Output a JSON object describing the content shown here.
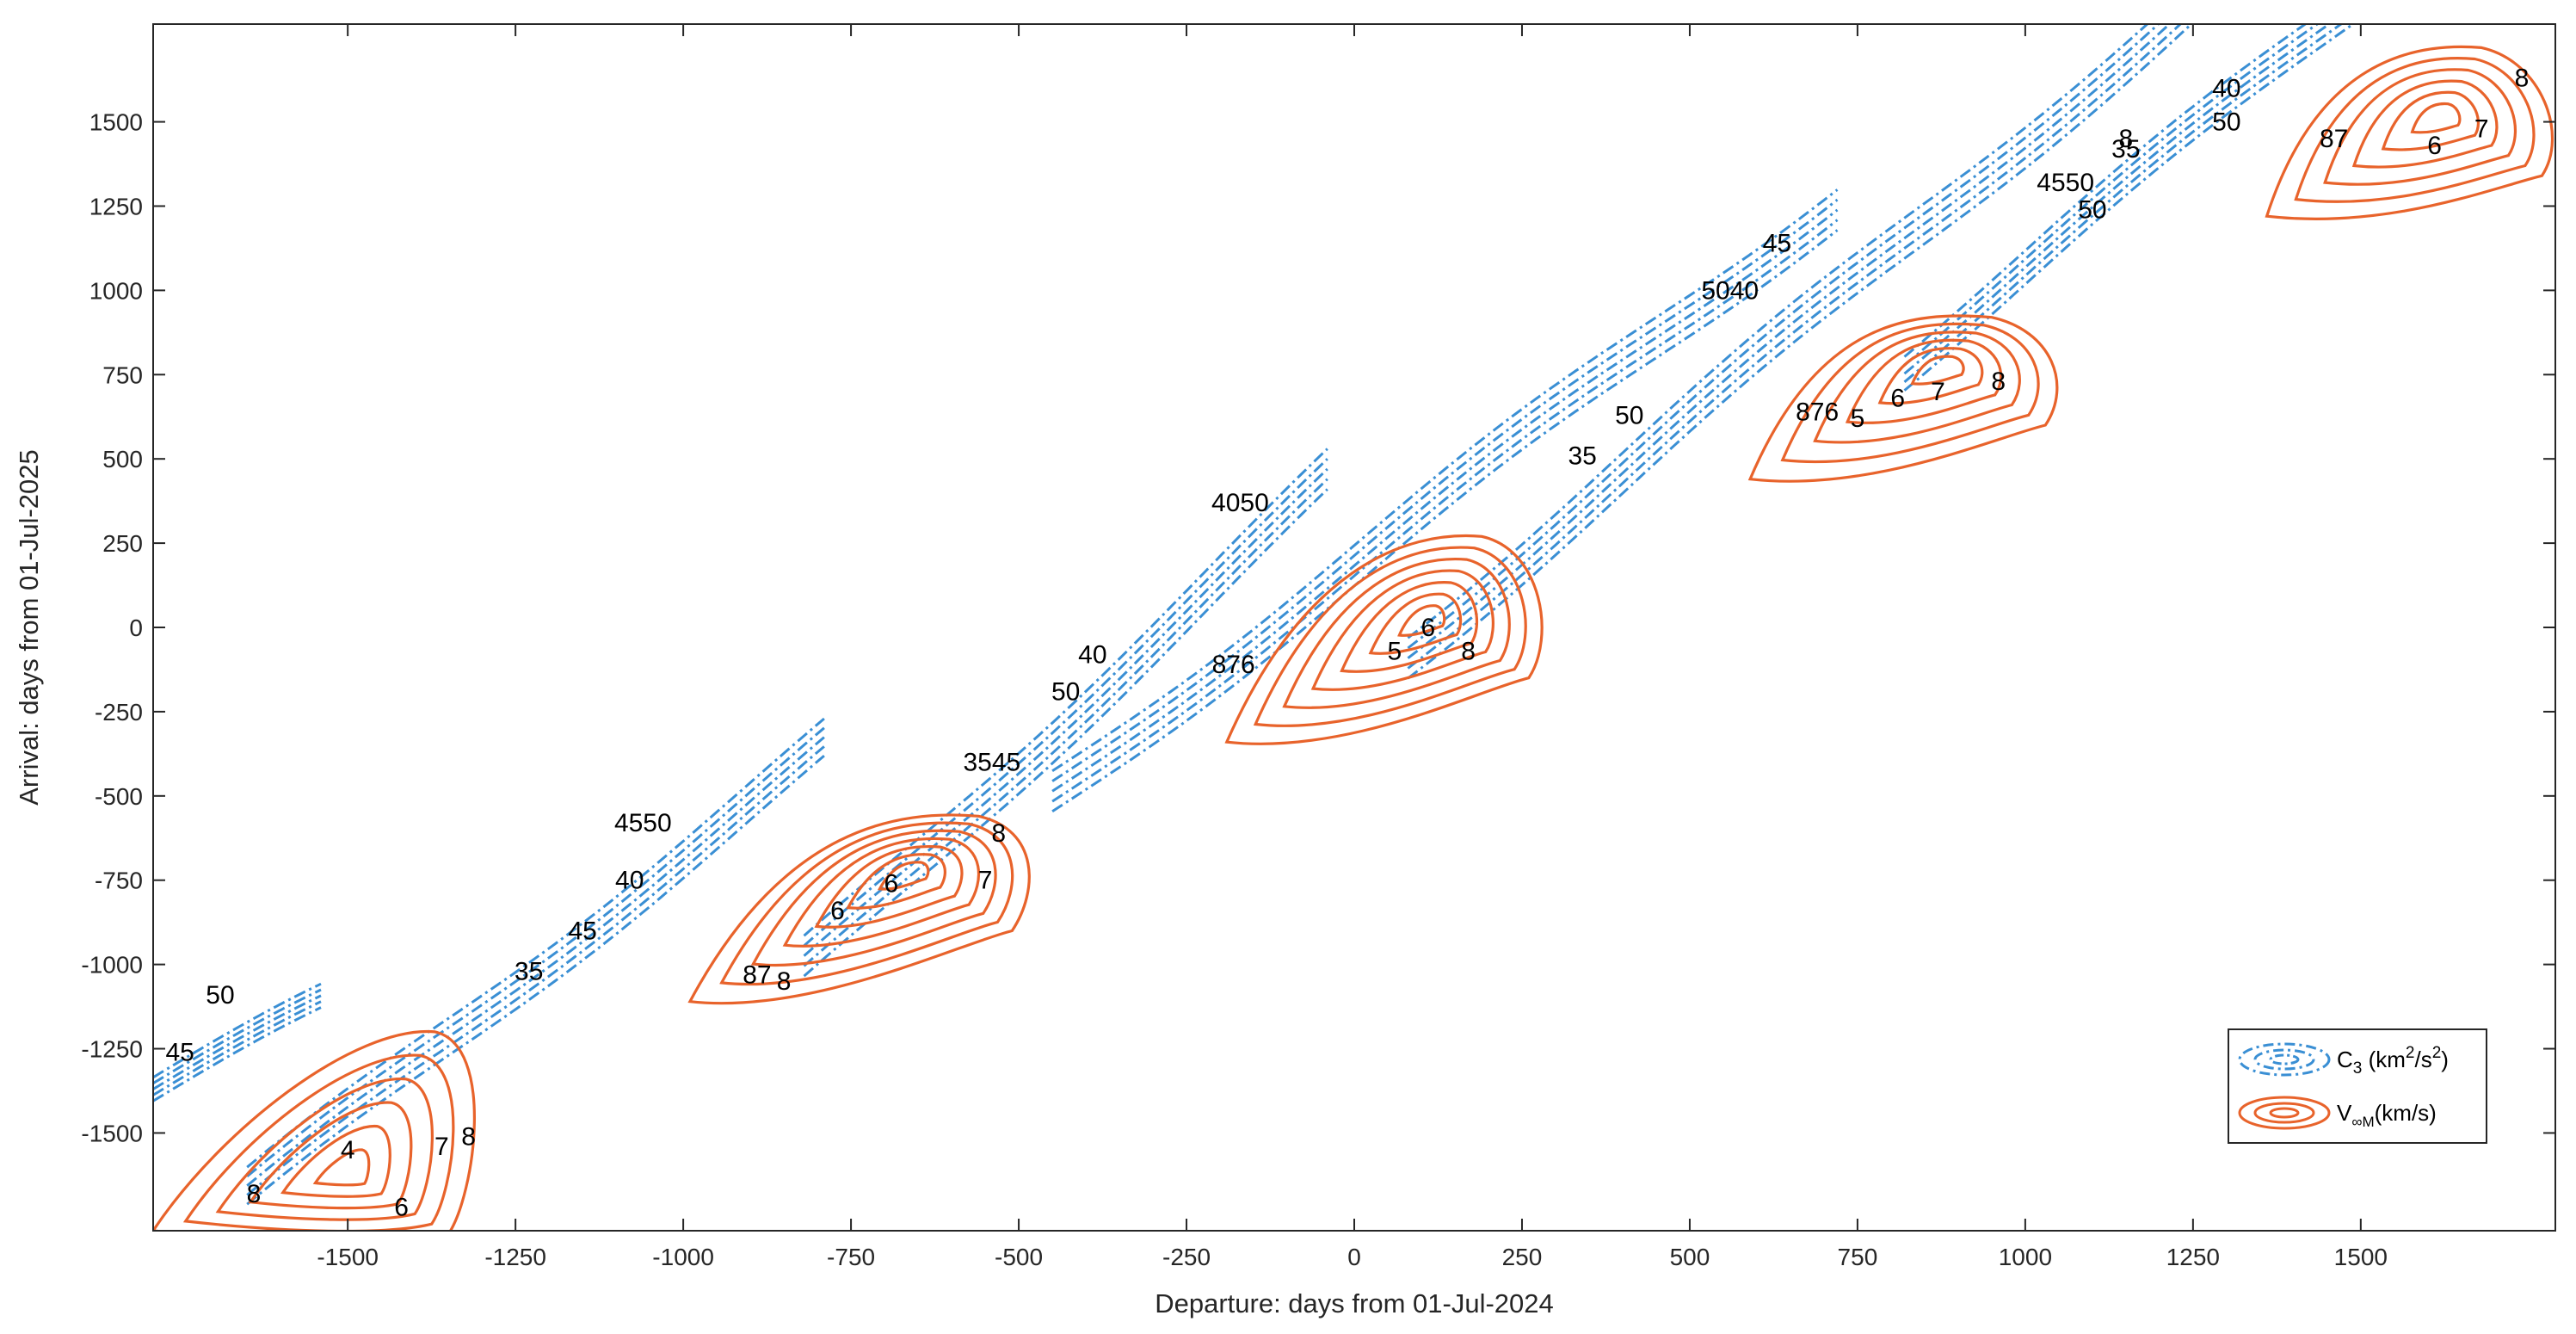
{
  "chart_data": {
    "type": "contour",
    "xlabel": "Departure: days from 01-Jul-2024",
    "ylabel": "Arrival: days from 01-Jul-2025",
    "xlim": [
      -1790,
      1790
    ],
    "ylim": [
      -1790,
      1790
    ],
    "x_ticks": [
      -1500,
      -1250,
      -1000,
      -750,
      -500,
      -250,
      0,
      250,
      500,
      750,
      1000,
      1250,
      1500
    ],
    "y_ticks": [
      -1500,
      -1250,
      -1000,
      -750,
      -500,
      -250,
      0,
      250,
      500,
      750,
      1000,
      1250,
      1500
    ],
    "grid": false,
    "legend_position": "bottom-right",
    "series": [
      {
        "name": "C3 (km2/s2)",
        "legend_main": "C",
        "legend_sub": "3",
        "legend_rest": " (km",
        "legend_sup1": "2",
        "legend_mid": "/s",
        "legend_sup2": "2",
        "legend_end": ")",
        "color": "#3a8fd4",
        "line_style": "dash-dot",
        "bands": [
          {
            "x_range": [
              -1790,
              -1540
            ],
            "slope": 1.0,
            "y_at_start": -1370,
            "width": 35
          },
          {
            "x_range": [
              -1650,
              -790
            ],
            "slope": 1.55,
            "y_at_start": -1680,
            "width": 55
          },
          {
            "x_range": [
              -820,
              -40
            ],
            "slope": 1.85,
            "y_at_start": -1000,
            "width": 60
          },
          {
            "x_range": [
              -450,
              720
            ],
            "slope": 1.5,
            "y_at_start": -490,
            "width": 60
          },
          {
            "x_range": [
              80,
              1400
            ],
            "slope": 1.65,
            "y_at_start": -70,
            "width": 60
          },
          {
            "x_range": [
              820,
              1790
            ],
            "slope": 1.6,
            "y_at_start": 780,
            "width": 50
          }
        ],
        "labels": [
          {
            "x": -1750,
            "y": -1260,
            "text": "45"
          },
          {
            "x": -1690,
            "y": -1090,
            "text": "50"
          },
          {
            "x": -1060,
            "y": -580,
            "text": "4550"
          },
          {
            "x": -1080,
            "y": -750,
            "text": "40"
          },
          {
            "x": -1150,
            "y": -900,
            "text": "45"
          },
          {
            "x": -1230,
            "y": -1020,
            "text": "35"
          },
          {
            "x": -170,
            "y": 370,
            "text": "4050"
          },
          {
            "x": -390,
            "y": -80,
            "text": "40"
          },
          {
            "x": -430,
            "y": -190,
            "text": "50"
          },
          {
            "x": -540,
            "y": -400,
            "text": "3545"
          },
          {
            "x": 560,
            "y": 1000,
            "text": "5040"
          },
          {
            "x": 630,
            "y": 1140,
            "text": "45"
          },
          {
            "x": 410,
            "y": 630,
            "text": "50"
          },
          {
            "x": 340,
            "y": 510,
            "text": "35"
          },
          {
            "x": 1300,
            "y": 1600,
            "text": "40"
          },
          {
            "x": 1300,
            "y": 1500,
            "text": "50"
          },
          {
            "x": 1060,
            "y": 1320,
            "text": "4550"
          },
          {
            "x": 1100,
            "y": 1240,
            "text": "50"
          },
          {
            "x": 1150,
            "y": 1420,
            "text": "35"
          }
        ]
      },
      {
        "name": "V∞M(km/s)",
        "legend_main": "V",
        "legend_sub": "∞M",
        "legend_rest": "(km/s)",
        "color": "#e8632b",
        "line_style": "solid",
        "families": [
          {
            "cx": -1410,
            "cy": -1510,
            "peak": [
              -1500,
              -1620
            ],
            "tail": [
              -1790,
              -1790
            ],
            "tip": [
              -1370,
              -1200
            ],
            "levels": 6
          },
          {
            "cx": -640,
            "cy": -700,
            "peak": [
              -660,
              -720
            ],
            "tail": [
              -990,
              -1110
            ],
            "tip": [
              -560,
              -560
            ],
            "levels": 7
          },
          {
            "cx": 130,
            "cy": 30,
            "peak": [
              110,
              30
            ],
            "tail": [
              -190,
              -340
            ],
            "tip": [
              190,
              270
            ],
            "levels": 7
          },
          {
            "cx": 890,
            "cy": 790,
            "peak": [
              880,
              780
            ],
            "tail": [
              590,
              440
            ],
            "tip": [
              950,
              920
            ],
            "levels": 6
          },
          {
            "cx": 1630,
            "cy": 1530,
            "peak": [
              1620,
              1520
            ],
            "tail": [
              1360,
              1220
            ],
            "tip": [
              1680,
              1720
            ],
            "levels": 6
          }
        ],
        "labels": [
          {
            "x": -1640,
            "y": -1680,
            "text": "8"
          },
          {
            "x": -1500,
            "y": -1550,
            "text": "4"
          },
          {
            "x": -1420,
            "y": -1720,
            "text": "6"
          },
          {
            "x": -1360,
            "y": -1540,
            "text": "7"
          },
          {
            "x": -1320,
            "y": -1510,
            "text": "8"
          },
          {
            "x": -890,
            "y": -1030,
            "text": "87"
          },
          {
            "x": -850,
            "y": -1050,
            "text": "8"
          },
          {
            "x": -770,
            "y": -840,
            "text": "6"
          },
          {
            "x": -690,
            "y": -760,
            "text": "6"
          },
          {
            "x": -550,
            "y": -750,
            "text": "7"
          },
          {
            "x": -530,
            "y": -610,
            "text": "8"
          },
          {
            "x": -180,
            "y": -110,
            "text": "876"
          },
          {
            "x": 60,
            "y": -70,
            "text": "5"
          },
          {
            "x": 170,
            "y": -70,
            "text": "8"
          },
          {
            "x": 110,
            "y": 0,
            "text": "6"
          },
          {
            "x": 690,
            "y": 640,
            "text": "876"
          },
          {
            "x": 750,
            "y": 620,
            "text": "5"
          },
          {
            "x": 810,
            "y": 680,
            "text": "6"
          },
          {
            "x": 870,
            "y": 700,
            "text": "7"
          },
          {
            "x": 960,
            "y": 730,
            "text": "8"
          },
          {
            "x": 1150,
            "y": 1450,
            "text": "8"
          },
          {
            "x": 1460,
            "y": 1450,
            "text": "87"
          },
          {
            "x": 1610,
            "y": 1430,
            "text": "6"
          },
          {
            "x": 1680,
            "y": 1480,
            "text": "7"
          },
          {
            "x": 1740,
            "y": 1630,
            "text": "8"
          }
        ]
      }
    ]
  }
}
